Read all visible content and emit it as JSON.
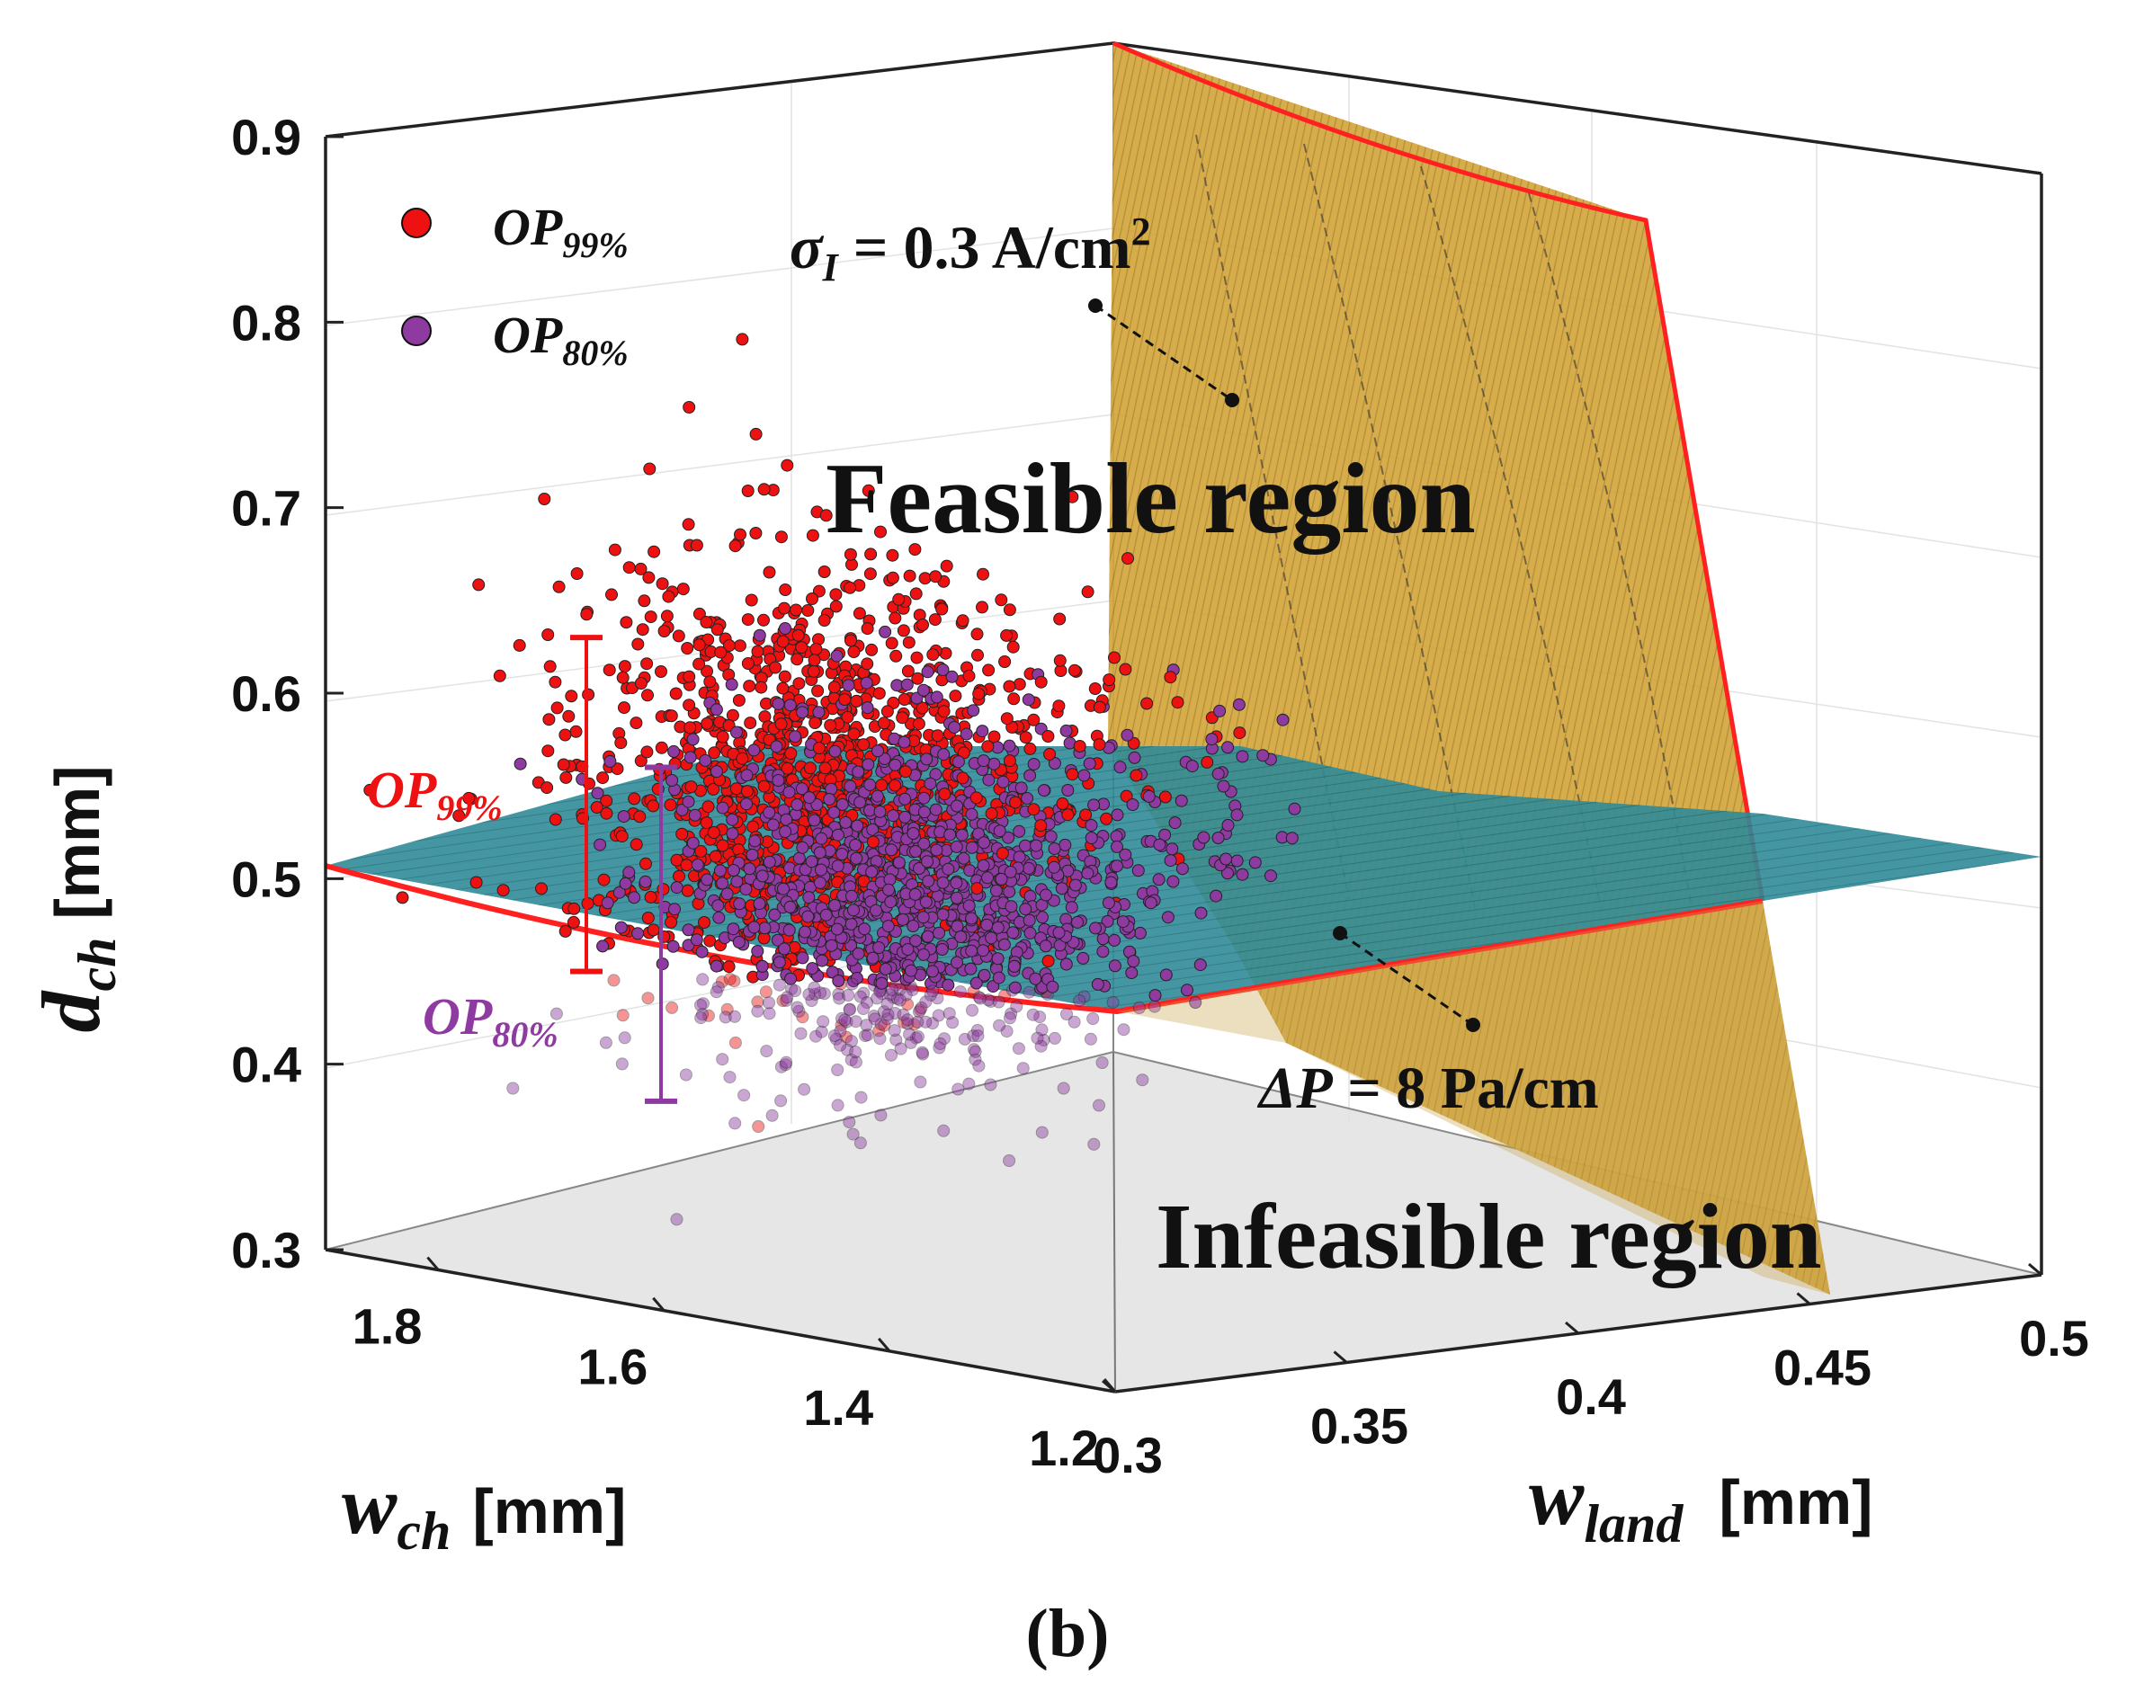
{
  "chart_data": {
    "type": "scatter3d",
    "title": "",
    "panel_label": "(b)",
    "axes": {
      "z": {
        "label_main": "d",
        "label_sub": "ch",
        "unit": "[mm]",
        "range": [
          0.3,
          0.9
        ],
        "ticks": [
          "0.9",
          "0.8",
          "0.7",
          "0.6",
          "0.5",
          "0.4",
          "0.3"
        ]
      },
      "x": {
        "label_main": "w",
        "label_sub": "ch",
        "unit": "[mm]",
        "range": [
          1.2,
          1.9
        ],
        "ticks": [
          "1.8",
          "1.6",
          "1.4",
          "1.2"
        ]
      },
      "y": {
        "label_main": "w",
        "label_sub": "land",
        "unit": "[mm]",
        "range": [
          0.3,
          0.5
        ],
        "ticks": [
          "0.3",
          "0.35",
          "0.4",
          "0.45",
          "0.5"
        ]
      }
    },
    "legend": [
      {
        "name": "OP",
        "sub": "99%",
        "color": "#ee1111"
      },
      {
        "name": "OP",
        "sub": "80%",
        "color": "#8e3aa0"
      }
    ],
    "series": [
      {
        "name": "OP99%",
        "color": "#ee1111",
        "approx_d_ch_range": [
          0.45,
          0.63
        ]
      },
      {
        "name": "OP80%",
        "color": "#8e3aa0",
        "approx_d_ch_range": [
          0.38,
          0.56
        ]
      }
    ],
    "surfaces": [
      {
        "name": "current_density_constraint",
        "label_greek": "σ",
        "label_sub": "I",
        "label_rest": " = 0.3 A/cm",
        "label_sup": "2",
        "color": "#d4a52a"
      },
      {
        "name": "pressure_drop_constraint",
        "label_main": "ΔP",
        "label_rest": " = 8 Pa/cm",
        "color": "#1e7f8e"
      }
    ],
    "ranges": [
      {
        "name": "OP",
        "sub": "99%",
        "from": 0.45,
        "to": 0.63,
        "color": "#ee1111"
      },
      {
        "name": "OP",
        "sub": "80%",
        "from": 0.38,
        "to": 0.56,
        "color": "#8e3aa0"
      }
    ],
    "annotations": [
      "Feasible region",
      "Infeasible region"
    ]
  }
}
